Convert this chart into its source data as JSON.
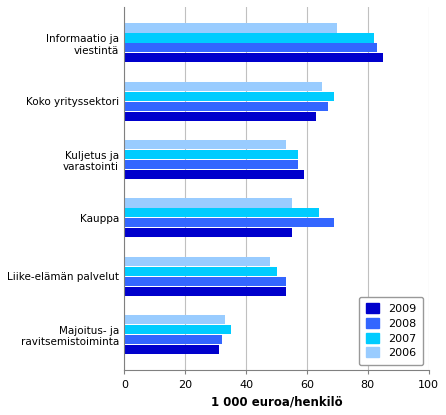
{
  "categories": [
    "Informaatio ja\nviestintä",
    "Koko yrityssektori",
    "Kuljetus ja\nvarastointi",
    "Kauppa",
    "Liike-elämän palvelut",
    "Majoitus- ja\nravitsemistoiminta"
  ],
  "years": [
    "2009",
    "2008",
    "2007",
    "2006"
  ],
  "values": [
    [
      85,
      83,
      82,
      70
    ],
    [
      63,
      67,
      69,
      65
    ],
    [
      59,
      57,
      57,
      53
    ],
    [
      55,
      69,
      64,
      55
    ],
    [
      53,
      53,
      50,
      48
    ],
    [
      31,
      32,
      35,
      33
    ]
  ],
  "colors": [
    "#0000CC",
    "#3366FF",
    "#00CCFF",
    "#99CCFF"
  ],
  "xlabel": "1 000 euroa/henkilö",
  "xlim": [
    0,
    100
  ],
  "xticks": [
    0,
    20,
    40,
    60,
    80,
    100
  ],
  "bar_height": 0.17,
  "background_color": "#ffffff",
  "grid_color": "#c0c0c0",
  "spine_color": "#808080"
}
